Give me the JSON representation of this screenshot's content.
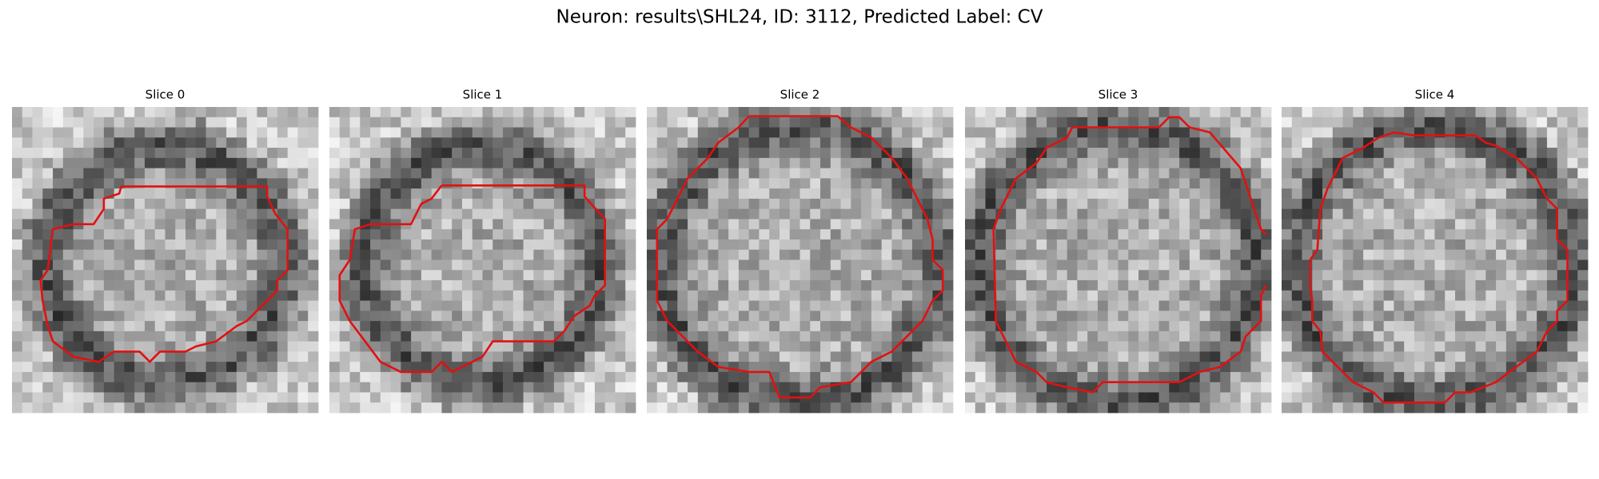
{
  "title": "Neuron: results\\SHL24, ID: 3112, Predicted Label: CV",
  "panels": [
    {
      "title": "Slice 0"
    },
    {
      "title": "Slice 1"
    },
    {
      "title": "Slice 2"
    },
    {
      "title": "Slice 3"
    },
    {
      "title": "Slice 4"
    }
  ]
}
